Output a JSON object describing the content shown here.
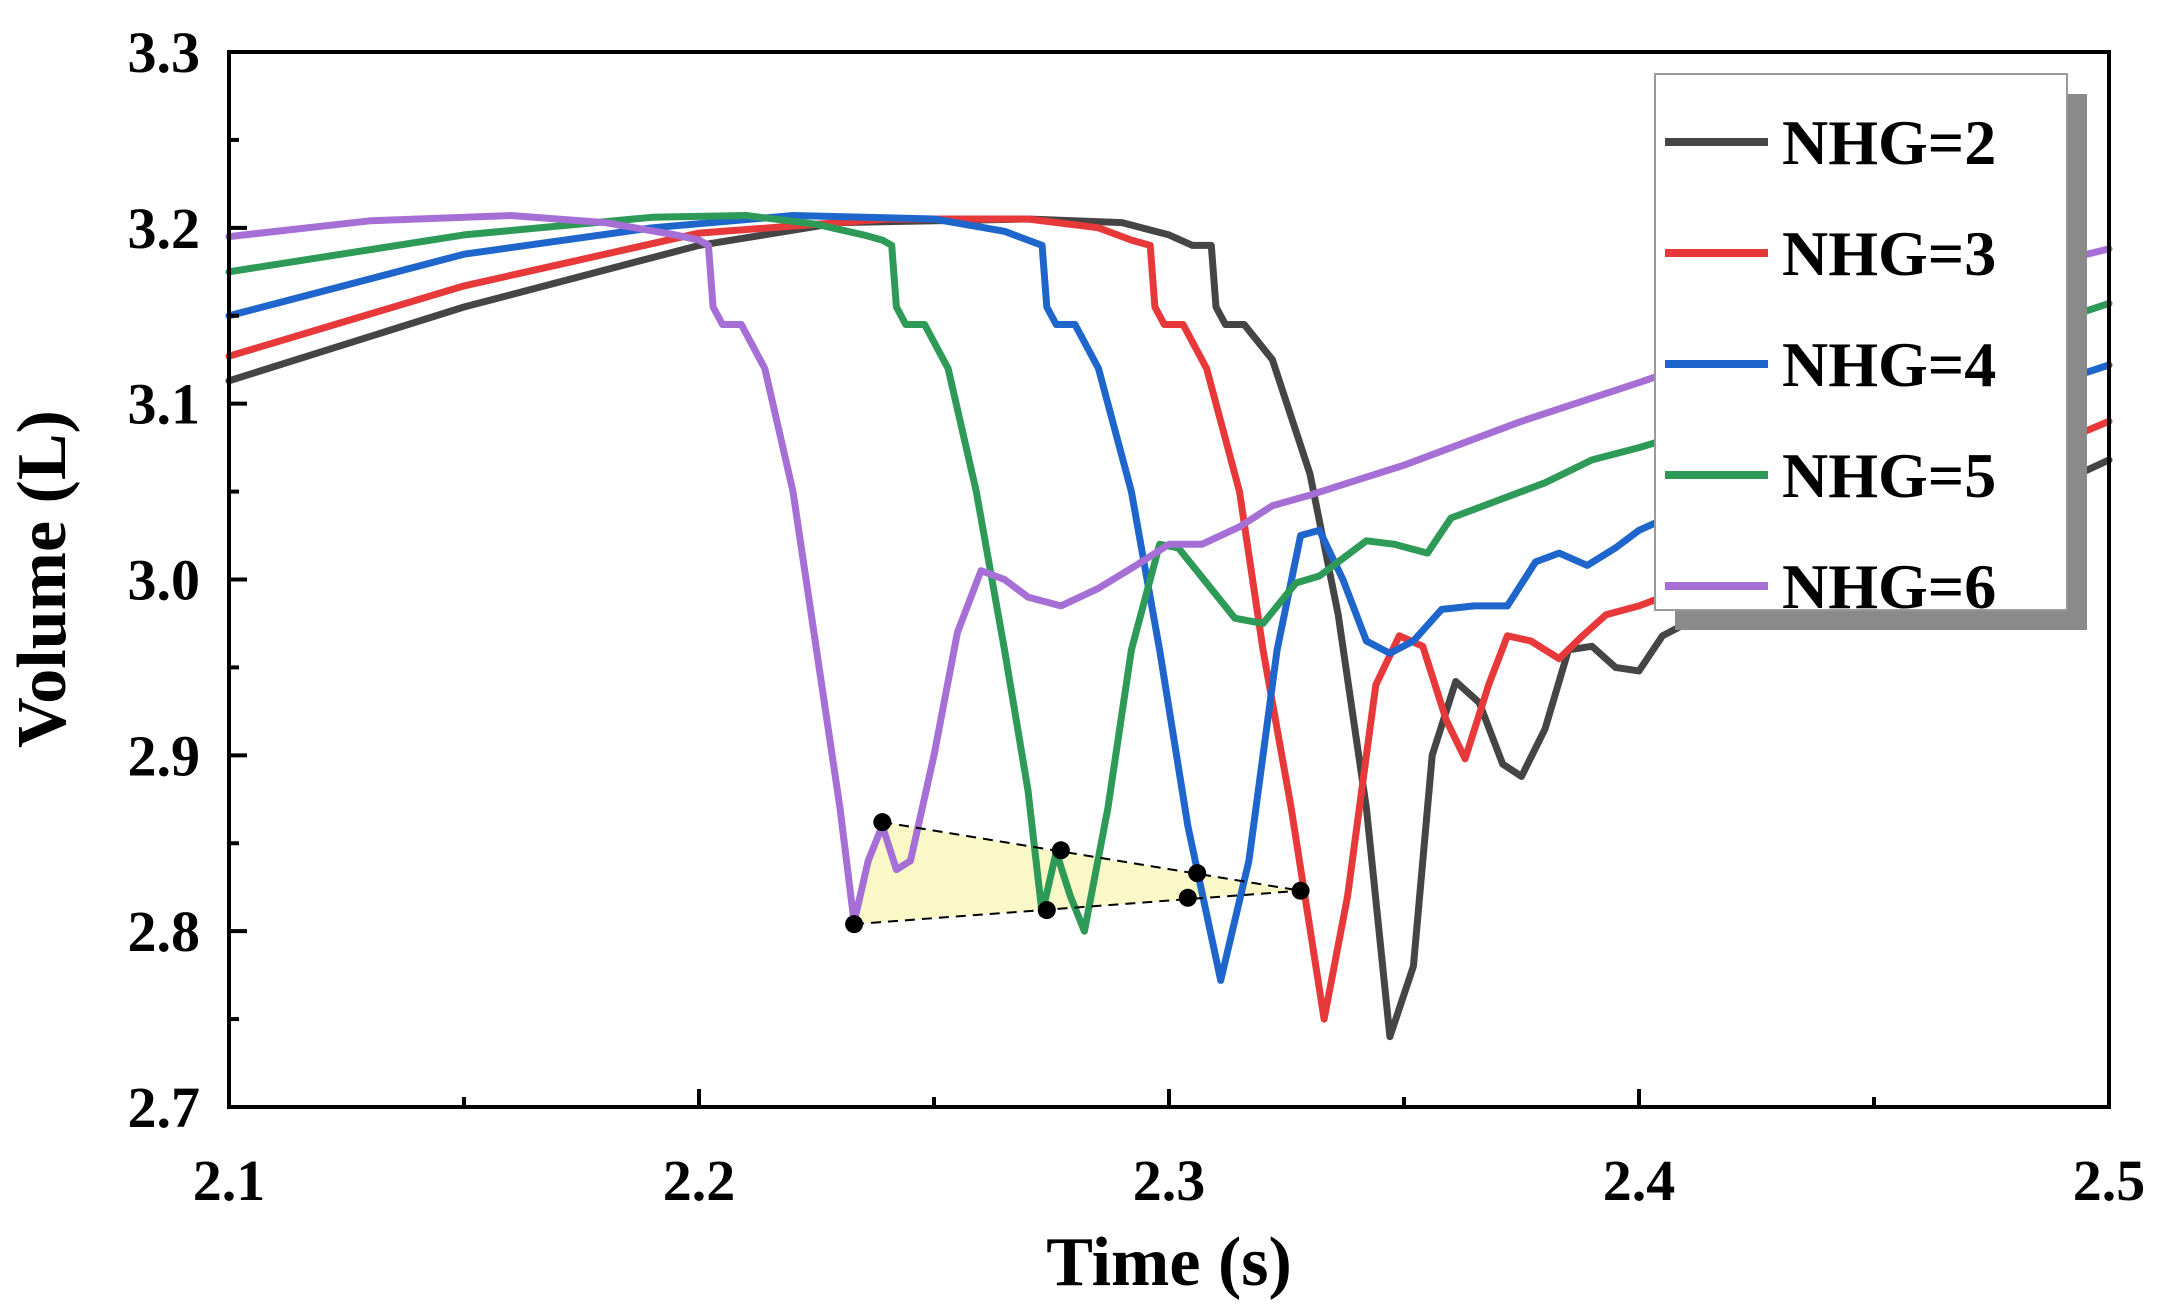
{
  "chart_data": {
    "type": "line",
    "title": "",
    "xlabel": "Time (s)",
    "ylabel": "Volume (L)",
    "xlim": [
      2.1,
      2.5
    ],
    "ylim": [
      2.7,
      3.3
    ],
    "xticks": [
      2.1,
      2.2,
      2.3,
      2.4,
      2.5
    ],
    "xtick_labels": [
      "2.1",
      "2.2",
      "2.3",
      "2.4",
      "2.5"
    ],
    "yticks": [
      2.7,
      2.8,
      2.9,
      3.0,
      3.1,
      3.2,
      3.3
    ],
    "ytick_labels": [
      "2.7",
      "2.8",
      "2.9",
      "3.0",
      "3.1",
      "3.2",
      "3.3"
    ],
    "grid": false,
    "legend_position": "top-right",
    "series": [
      {
        "name": "NHG=2",
        "label": "NHG=2",
        "color": "#454545",
        "points": [
          [
            2.1,
            3.113
          ],
          [
            2.15,
            3.155
          ],
          [
            2.2,
            3.19
          ],
          [
            2.23,
            3.203
          ],
          [
            2.27,
            3.205
          ],
          [
            2.29,
            3.203
          ],
          [
            2.3,
            3.196
          ],
          [
            2.305,
            3.19
          ],
          [
            2.309,
            3.19
          ],
          [
            2.31,
            3.155
          ],
          [
            2.312,
            3.145
          ],
          [
            2.316,
            3.145
          ],
          [
            2.322,
            3.125
          ],
          [
            2.33,
            3.06
          ],
          [
            2.336,
            2.98
          ],
          [
            2.342,
            2.87
          ],
          [
            2.347,
            2.74
          ],
          [
            2.352,
            2.78
          ],
          [
            2.356,
            2.9
          ],
          [
            2.361,
            2.942
          ],
          [
            2.366,
            2.93
          ],
          [
            2.371,
            2.895
          ],
          [
            2.375,
            2.888
          ],
          [
            2.38,
            2.915
          ],
          [
            2.385,
            2.96
          ],
          [
            2.39,
            2.962
          ],
          [
            2.395,
            2.95
          ],
          [
            2.4,
            2.948
          ],
          [
            2.405,
            2.968
          ],
          [
            2.41,
            2.975
          ],
          [
            2.415,
            2.978
          ],
          [
            2.425,
            2.985
          ],
          [
            2.45,
            3.007
          ],
          [
            2.475,
            3.037
          ],
          [
            2.5,
            3.068
          ]
        ]
      },
      {
        "name": "NHG=3",
        "label": "NHG=3",
        "color": "#e8393a",
        "points": [
          [
            2.1,
            3.127
          ],
          [
            2.15,
            3.167
          ],
          [
            2.2,
            3.197
          ],
          [
            2.24,
            3.205
          ],
          [
            2.27,
            3.205
          ],
          [
            2.285,
            3.2
          ],
          [
            2.292,
            3.193
          ],
          [
            2.296,
            3.19
          ],
          [
            2.297,
            3.155
          ],
          [
            2.299,
            3.145
          ],
          [
            2.303,
            3.145
          ],
          [
            2.308,
            3.12
          ],
          [
            2.315,
            3.05
          ],
          [
            2.32,
            2.96
          ],
          [
            2.326,
            2.87
          ],
          [
            2.333,
            2.75
          ],
          [
            2.338,
            2.82
          ],
          [
            2.344,
            2.94
          ],
          [
            2.349,
            2.968
          ],
          [
            2.354,
            2.962
          ],
          [
            2.359,
            2.92
          ],
          [
            2.363,
            2.898
          ],
          [
            2.368,
            2.94
          ],
          [
            2.372,
            2.968
          ],
          [
            2.377,
            2.965
          ],
          [
            2.383,
            2.955
          ],
          [
            2.388,
            2.968
          ],
          [
            2.393,
            2.98
          ],
          [
            2.4,
            2.985
          ],
          [
            2.41,
            2.995
          ],
          [
            2.425,
            3.012
          ],
          [
            2.45,
            3.035
          ],
          [
            2.475,
            3.062
          ],
          [
            2.5,
            3.09
          ]
        ]
      },
      {
        "name": "NHG=4",
        "label": "NHG=4",
        "color": "#1f66cc",
        "points": [
          [
            2.1,
            3.15
          ],
          [
            2.15,
            3.185
          ],
          [
            2.19,
            3.2
          ],
          [
            2.22,
            3.207
          ],
          [
            2.25,
            3.205
          ],
          [
            2.265,
            3.198
          ],
          [
            2.27,
            3.193
          ],
          [
            2.273,
            3.19
          ],
          [
            2.274,
            3.155
          ],
          [
            2.276,
            3.145
          ],
          [
            2.28,
            3.145
          ],
          [
            2.285,
            3.12
          ],
          [
            2.292,
            3.05
          ],
          [
            2.298,
            2.96
          ],
          [
            2.304,
            2.86
          ],
          [
            2.311,
            2.772
          ],
          [
            2.317,
            2.84
          ],
          [
            2.323,
            2.96
          ],
          [
            2.328,
            3.025
          ],
          [
            2.332,
            3.028
          ],
          [
            2.337,
            3.0
          ],
          [
            2.342,
            2.965
          ],
          [
            2.347,
            2.958
          ],
          [
            2.352,
            2.965
          ],
          [
            2.358,
            2.983
          ],
          [
            2.365,
            2.985
          ],
          [
            2.372,
            2.985
          ],
          [
            2.378,
            3.01
          ],
          [
            2.383,
            3.015
          ],
          [
            2.389,
            3.008
          ],
          [
            2.395,
            3.018
          ],
          [
            2.4,
            3.028
          ],
          [
            2.41,
            3.04
          ],
          [
            2.425,
            3.055
          ],
          [
            2.45,
            3.078
          ],
          [
            2.475,
            3.1
          ],
          [
            2.5,
            3.122
          ]
        ]
      },
      {
        "name": "NHG=5",
        "label": "NHG=5",
        "color": "#2e9a58",
        "points": [
          [
            2.1,
            3.175
          ],
          [
            2.15,
            3.196
          ],
          [
            2.19,
            3.206
          ],
          [
            2.21,
            3.207
          ],
          [
            2.225,
            3.202
          ],
          [
            2.235,
            3.196
          ],
          [
            2.239,
            3.193
          ],
          [
            2.241,
            3.19
          ],
          [
            2.242,
            3.155
          ],
          [
            2.244,
            3.145
          ],
          [
            2.248,
            3.145
          ],
          [
            2.253,
            3.12
          ],
          [
            2.259,
            3.05
          ],
          [
            2.265,
            2.96
          ],
          [
            2.27,
            2.88
          ],
          [
            2.273,
            2.81
          ],
          [
            2.276,
            2.845
          ],
          [
            2.279,
            2.82
          ],
          [
            2.282,
            2.8
          ],
          [
            2.287,
            2.87
          ],
          [
            2.292,
            2.96
          ],
          [
            2.298,
            3.02
          ],
          [
            2.302,
            3.018
          ],
          [
            2.308,
            2.998
          ],
          [
            2.314,
            2.978
          ],
          [
            2.32,
            2.975
          ],
          [
            2.327,
            2.998
          ],
          [
            2.332,
            3.002
          ],
          [
            2.336,
            3.01
          ],
          [
            2.342,
            3.022
          ],
          [
            2.348,
            3.02
          ],
          [
            2.355,
            3.015
          ],
          [
            2.36,
            3.035
          ],
          [
            2.37,
            3.045
          ],
          [
            2.38,
            3.055
          ],
          [
            2.39,
            3.068
          ],
          [
            2.4,
            3.075
          ],
          [
            2.425,
            3.095
          ],
          [
            2.45,
            3.115
          ],
          [
            2.475,
            3.135
          ],
          [
            2.5,
            3.157
          ]
        ]
      },
      {
        "name": "NHG=6",
        "label": "NHG=6",
        "color": "#a66fd6",
        "points": [
          [
            2.1,
            3.195
          ],
          [
            2.13,
            3.204
          ],
          [
            2.16,
            3.207
          ],
          [
            2.18,
            3.203
          ],
          [
            2.195,
            3.196
          ],
          [
            2.2,
            3.193
          ],
          [
            2.202,
            3.19
          ],
          [
            2.203,
            3.155
          ],
          [
            2.205,
            3.145
          ],
          [
            2.209,
            3.145
          ],
          [
            2.214,
            3.12
          ],
          [
            2.22,
            3.05
          ],
          [
            2.225,
            2.96
          ],
          [
            2.23,
            2.87
          ],
          [
            2.233,
            2.805
          ],
          [
            2.236,
            2.84
          ],
          [
            2.239,
            2.86
          ],
          [
            2.242,
            2.835
          ],
          [
            2.245,
            2.84
          ],
          [
            2.25,
            2.9
          ],
          [
            2.255,
            2.97
          ],
          [
            2.26,
            3.005
          ],
          [
            2.265,
            3.0
          ],
          [
            2.27,
            2.99
          ],
          [
            2.277,
            2.985
          ],
          [
            2.285,
            2.995
          ],
          [
            2.293,
            3.008
          ],
          [
            2.3,
            3.02
          ],
          [
            2.307,
            3.02
          ],
          [
            2.315,
            3.03
          ],
          [
            2.322,
            3.042
          ],
          [
            2.33,
            3.048
          ],
          [
            2.35,
            3.065
          ],
          [
            2.375,
            3.09
          ],
          [
            2.4,
            3.112
          ],
          [
            2.425,
            3.135
          ],
          [
            2.45,
            3.155
          ],
          [
            2.475,
            3.172
          ],
          [
            2.5,
            3.188
          ]
        ]
      }
    ],
    "annotations": {
      "shaded_region_color": "#fbf8c8",
      "markers": [
        [
          2.239,
          2.862
        ],
        [
          2.277,
          2.846
        ],
        [
          2.306,
          2.833
        ],
        [
          2.328,
          2.823
        ],
        [
          2.233,
          2.804
        ],
        [
          2.274,
          2.812
        ],
        [
          2.304,
          2.819
        ]
      ],
      "upper_dashed_line": [
        [
          2.239,
          2.862
        ],
        [
          2.328,
          2.823
        ]
      ],
      "lower_dashed_line": [
        [
          2.233,
          2.804
        ],
        [
          2.328,
          2.823
        ]
      ]
    }
  }
}
